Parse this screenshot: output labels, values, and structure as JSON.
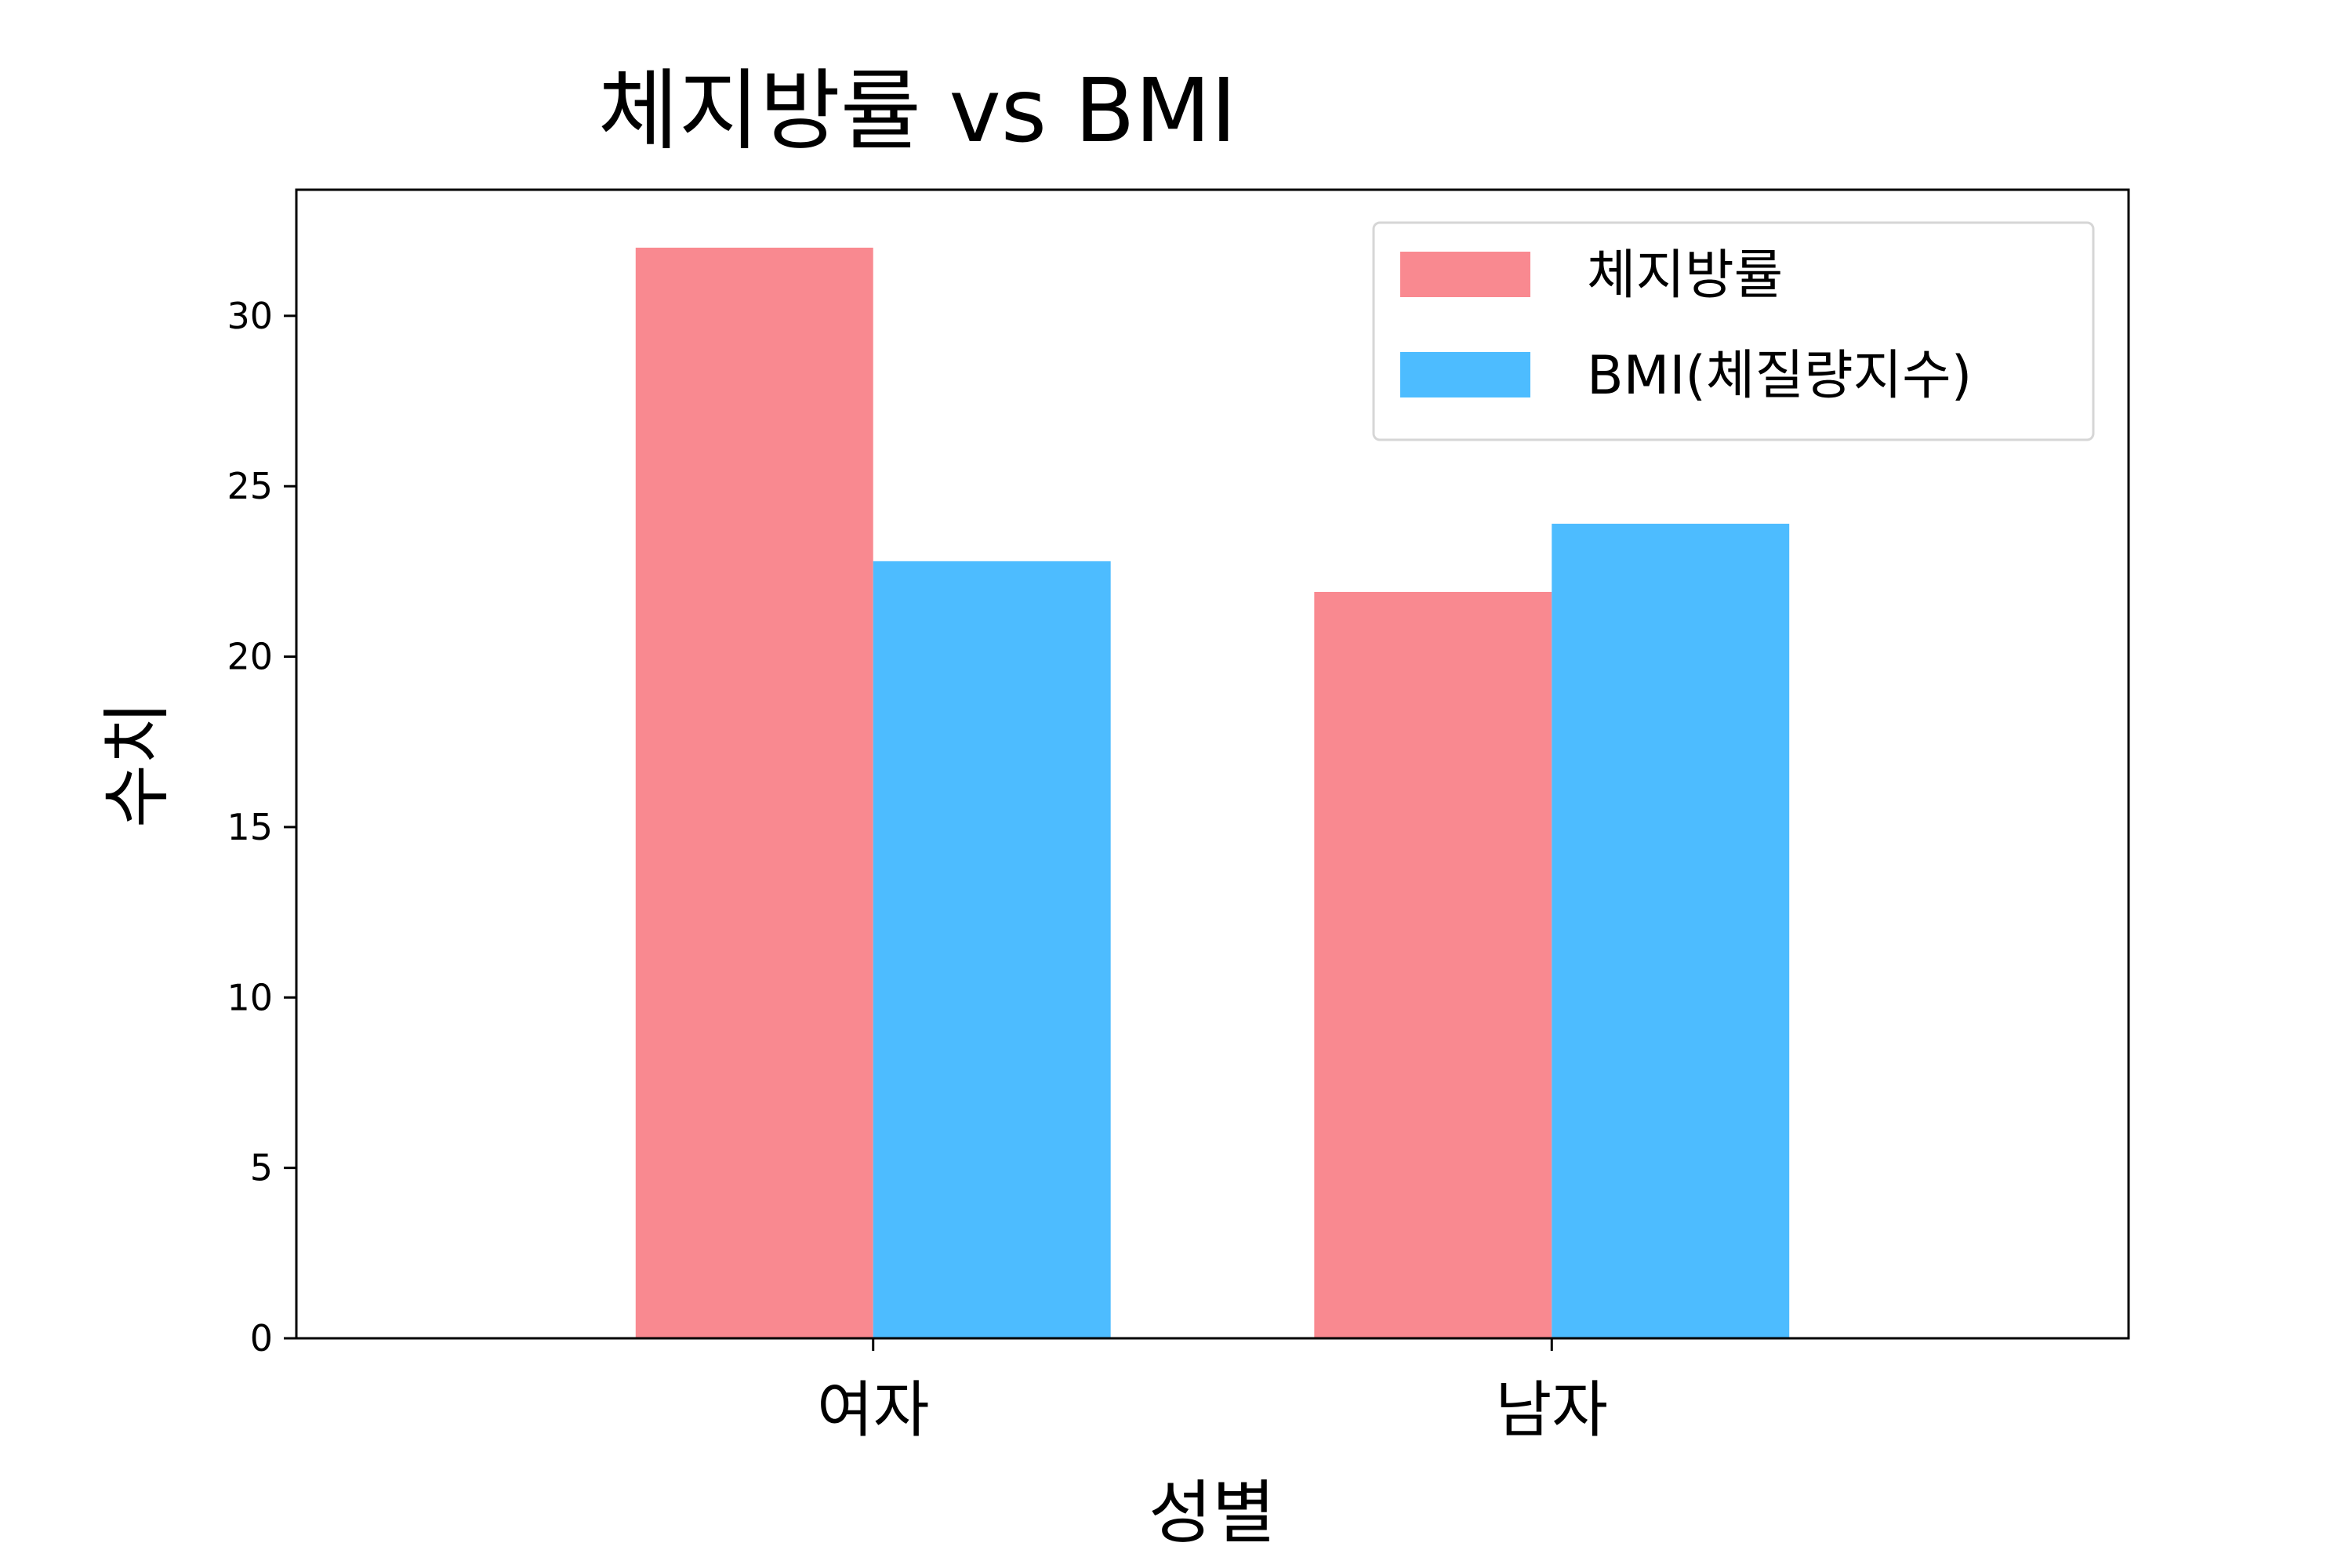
{
  "chart_data": {
    "type": "bar",
    "title": "체지방률 vs BMI",
    "xlabel": "성별",
    "ylabel": "수치",
    "categories": [
      "여자",
      "남자"
    ],
    "series": [
      {
        "name": "체지방률",
        "values": [
          32.0,
          21.9
        ],
        "color": "#f98990"
      },
      {
        "name": "BMI(체질량지수)",
        "values": [
          22.8,
          23.9
        ],
        "color": "#4dbcff"
      }
    ],
    "ylim": [
      0,
      33.7
    ],
    "yticks": [
      0,
      5,
      10,
      15,
      20,
      25,
      30
    ],
    "grid": false,
    "legend_position": "top-right"
  }
}
